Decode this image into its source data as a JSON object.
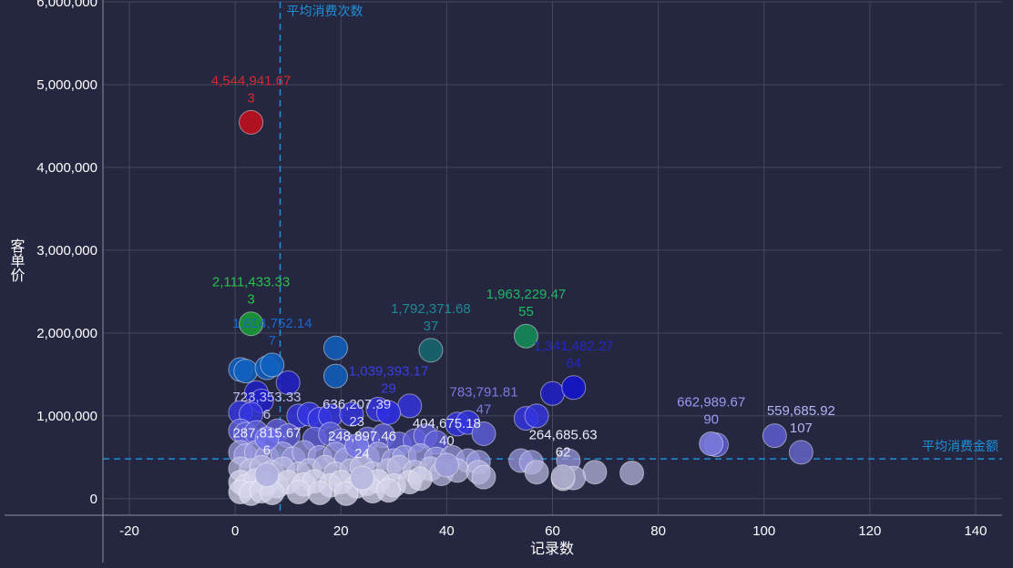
{
  "chart_data": {
    "type": "scatter",
    "title": "",
    "xlabel": "记录数",
    "ylabel": "客单价",
    "xlim": [
      -25,
      145
    ],
    "ylim": [
      -200000,
      6000000
    ],
    "x_ticks": [
      -20,
      0,
      20,
      40,
      60,
      80,
      100,
      120,
      140
    ],
    "y_ticks": [
      0,
      1000000,
      2000000,
      3000000,
      4000000,
      5000000,
      6000000
    ],
    "y_tick_labels": [
      "0",
      "1,000,000",
      "2,000,000",
      "3,000,000",
      "4,000,000",
      "5,000,000",
      "6,000,000"
    ],
    "grid": true,
    "reference_lines": {
      "x": {
        "value": 8.5,
        "label": "平均消费次数"
      },
      "y": {
        "value": 480000,
        "label": "平均消费金额"
      }
    },
    "labeled_points": [
      {
        "x": 3,
        "y": 4544941.67,
        "value_label": "4,544,941.67",
        "count_label": "3",
        "color": "#c0101e",
        "label_color": "#d42a30"
      },
      {
        "x": 3,
        "y": 2111433.33,
        "value_label": "2,111,433.33",
        "count_label": "3",
        "color": "#1a9a35",
        "label_color": "#28c048"
      },
      {
        "x": 55,
        "y": 1963229.47,
        "value_label": "1,963,229.47",
        "count_label": "55",
        "color": "#158a58",
        "label_color": "#20b860"
      },
      {
        "x": 37,
        "y": 1792371.68,
        "value_label": "1,792,371.68",
        "count_label": "37",
        "color": "#17666e",
        "label_color": "#1d8a95"
      },
      {
        "x": 7,
        "y": 1614752.14,
        "value_label": "1,614,752.14",
        "count_label": "7",
        "color": "#1060c0",
        "label_color": "#1a66cc"
      },
      {
        "x": 64,
        "y": 1341482.27,
        "value_label": "1,341,482.27",
        "count_label": "64",
        "color": "#1515cc",
        "label_color": "#2426c4"
      },
      {
        "x": 29,
        "y": 1039393.17,
        "value_label": "1,039,393.17",
        "count_label": "29",
        "color": "#2d2ee0",
        "label_color": "#3a3ee0"
      },
      {
        "x": 47,
        "y": 783791.81,
        "value_label": "783,791.81",
        "count_label": "47",
        "color": "#5a5acc",
        "label_color": "#7a7ae0"
      },
      {
        "x": 6,
        "y": 723353.33,
        "value_label": "723,353.33",
        "count_label": "6",
        "color": "#7070ee",
        "label_color": "#c2c2f4"
      },
      {
        "x": 23,
        "y": 636207.39,
        "value_label": "636,207.39",
        "count_label": "23",
        "color": "#7878e8",
        "label_color": "#d4d4f8"
      },
      {
        "x": 90,
        "y": 662989.67,
        "value_label": "662,989.67",
        "count_label": "90",
        "color": "#7a7adc",
        "label_color": "#9a9af0"
      },
      {
        "x": 107,
        "y": 559685.92,
        "value_label": "559,685.92",
        "count_label": "107",
        "color": "#6060c0",
        "label_color": "#b4b4f0"
      },
      {
        "x": 40,
        "y": 404675.18,
        "value_label": "404,675.18",
        "count_label": "40",
        "color": "#9a9ad8",
        "label_color": "#e4e4f4"
      },
      {
        "x": 6,
        "y": 287815.67,
        "value_label": "287,815.67",
        "count_label": "6",
        "color": "#b0b0e0",
        "label_color": "#ededf8"
      },
      {
        "x": 24,
        "y": 248897.46,
        "value_label": "248,897.46",
        "count_label": "24",
        "color": "#b8b8e0",
        "label_color": "#ededf8"
      },
      {
        "x": 62,
        "y": 264685.63,
        "value_label": "264,685.63",
        "count_label": "62",
        "color": "#a8a8c8",
        "label_color": "#ededf8"
      }
    ],
    "unlabeled_points": [
      [
        1,
        1560000
      ],
      [
        2,
        1540000
      ],
      [
        6,
        1580000
      ],
      [
        4,
        1280000
      ],
      [
        5,
        1180000
      ],
      [
        10,
        1400000
      ],
      [
        19,
        1820000
      ],
      [
        19,
        1480000
      ],
      [
        1,
        1040000
      ],
      [
        3,
        1020000
      ],
      [
        12,
        1000000
      ],
      [
        14,
        1020000
      ],
      [
        16,
        960000
      ],
      [
        18,
        1000000
      ],
      [
        22,
        1020000
      ],
      [
        27,
        1080000
      ],
      [
        33,
        1120000
      ],
      [
        42,
        900000
      ],
      [
        44,
        920000
      ],
      [
        55,
        970000
      ],
      [
        57,
        1000000
      ],
      [
        60,
        1270000
      ],
      [
        91,
        650000
      ],
      [
        102,
        760000
      ],
      [
        1,
        820000
      ],
      [
        2,
        780000
      ],
      [
        4,
        800000
      ],
      [
        8,
        820000
      ],
      [
        10,
        760000
      ],
      [
        15,
        720000
      ],
      [
        18,
        780000
      ],
      [
        20,
        700000
      ],
      [
        25,
        720000
      ],
      [
        28,
        760000
      ],
      [
        31,
        660000
      ],
      [
        34,
        700000
      ],
      [
        36,
        760000
      ],
      [
        38,
        680000
      ],
      [
        1,
        560000
      ],
      [
        2,
        520000
      ],
      [
        4,
        560000
      ],
      [
        6,
        500000
      ],
      [
        9,
        540000
      ],
      [
        11,
        480000
      ],
      [
        13,
        560000
      ],
      [
        16,
        500000
      ],
      [
        19,
        540000
      ],
      [
        21,
        470000
      ],
      [
        25,
        500000
      ],
      [
        27,
        540000
      ],
      [
        30,
        460000
      ],
      [
        32,
        500000
      ],
      [
        35,
        520000
      ],
      [
        38,
        480000
      ],
      [
        41,
        500000
      ],
      [
        44,
        460000
      ],
      [
        46,
        440000
      ],
      [
        54,
        460000
      ],
      [
        56,
        440000
      ],
      [
        63,
        460000
      ],
      [
        1,
        360000
      ],
      [
        3,
        340000
      ],
      [
        5,
        380000
      ],
      [
        7,
        320000
      ],
      [
        9,
        360000
      ],
      [
        12,
        300000
      ],
      [
        14,
        340000
      ],
      [
        17,
        380000
      ],
      [
        19,
        300000
      ],
      [
        22,
        340000
      ],
      [
        24,
        380000
      ],
      [
        26,
        300000
      ],
      [
        29,
        340000
      ],
      [
        31,
        380000
      ],
      [
        34,
        320000
      ],
      [
        37,
        360000
      ],
      [
        39,
        300000
      ],
      [
        42,
        340000
      ],
      [
        46,
        320000
      ],
      [
        57,
        320000
      ],
      [
        68,
        320000
      ],
      [
        75,
        310000
      ],
      [
        1,
        200000
      ],
      [
        2,
        150000
      ],
      [
        4,
        220000
      ],
      [
        6,
        180000
      ],
      [
        8,
        150000
      ],
      [
        10,
        200000
      ],
      [
        13,
        170000
      ],
      [
        15,
        210000
      ],
      [
        18,
        160000
      ],
      [
        20,
        200000
      ],
      [
        23,
        150000
      ],
      [
        25,
        180000
      ],
      [
        27,
        210000
      ],
      [
        30,
        160000
      ],
      [
        33,
        200000
      ],
      [
        35,
        240000
      ],
      [
        47,
        260000
      ],
      [
        62,
        240000
      ],
      [
        64,
        250000
      ],
      [
        1,
        80000
      ],
      [
        3,
        60000
      ],
      [
        5,
        90000
      ],
      [
        7,
        70000
      ],
      [
        12,
        80000
      ],
      [
        16,
        70000
      ],
      [
        21,
        60000
      ],
      [
        26,
        90000
      ],
      [
        29,
        100000
      ]
    ]
  }
}
